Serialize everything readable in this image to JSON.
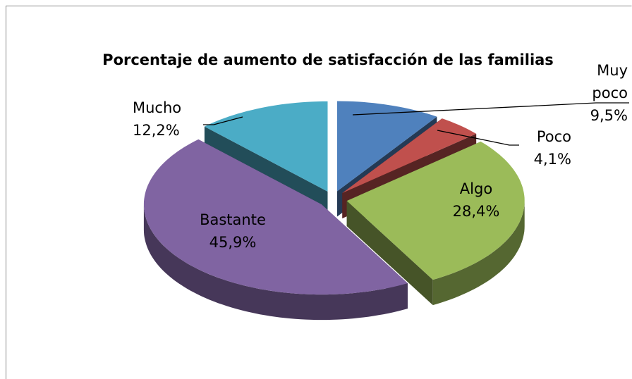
{
  "chart_data": {
    "type": "pie",
    "title": "Porcentaje de aumento de satisfacción de las familias",
    "categories": [
      "Muy poco",
      "Poco",
      "Algo",
      "Bastante",
      "Mucho"
    ],
    "values": [
      9.5,
      4.1,
      28.4,
      45.9,
      12.2
    ],
    "value_labels": [
      "9,5%",
      "4,1%",
      "28,4%",
      "45,9%",
      "12,2%"
    ],
    "colors": [
      "#4f81bd",
      "#c0504d",
      "#9bbb59",
      "#8064a2",
      "#4bacc6"
    ]
  }
}
